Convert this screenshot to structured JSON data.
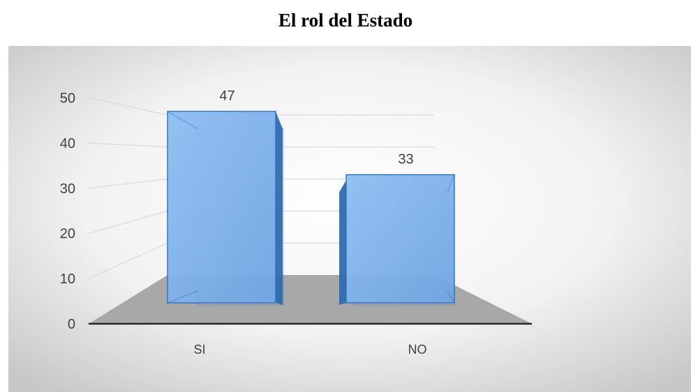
{
  "chart_data": {
    "type": "bar",
    "title": "El rol del Estado",
    "categories": [
      "SI",
      "NO"
    ],
    "values": [
      47,
      33
    ],
    "ylim": [
      0,
      50
    ],
    "yticks": [
      0,
      10,
      20,
      30,
      40,
      50
    ],
    "grid": true,
    "legend": "none",
    "colors": {
      "bar_fill": "#7AAFE8",
      "bar_edge": "#2F6FBF",
      "bar_side": "#2E6DAE",
      "floor": "#A8A8A8",
      "gridline": "#D9D9D9",
      "panel_center": "#FFFFFF",
      "panel_edge": "#C8C8C8"
    }
  }
}
